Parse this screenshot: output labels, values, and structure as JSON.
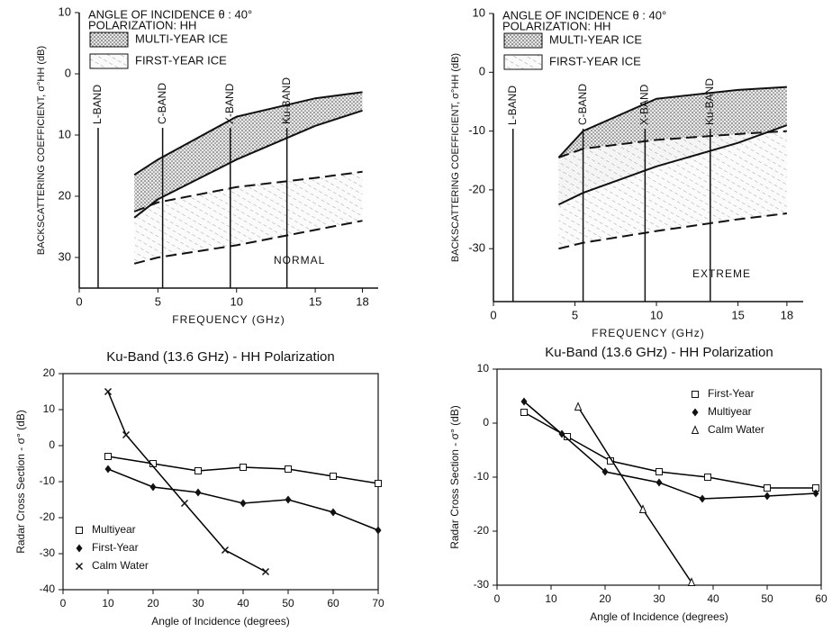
{
  "chart_data": [
    {
      "type": "band",
      "xlim": [
        0,
        19
      ],
      "ylim": [
        -35,
        10
      ],
      "xticks": [
        0,
        5,
        10,
        15,
        18
      ],
      "yticks": [
        10,
        0,
        {
          "value": -10,
          "label": "10"
        },
        {
          "value": -20,
          "label": "20"
        },
        {
          "value": -30,
          "label": "30"
        }
      ],
      "xlabel": "FREQUENCY (GHz)",
      "ylabel": "BACKSCATTERING COEFFICIENT, σ°HH (dB)",
      "annotations": [
        "ANGLE OF INCIDENCE θ : 40°",
        "POLARIZATION: HH"
      ],
      "note": "NORMAL",
      "bands": [
        {
          "label": "L-BAND",
          "x": 1.2
        },
        {
          "label": "C-BAND",
          "x": 5.3
        },
        {
          "label": "X-BAND",
          "x": 9.6
        },
        {
          "label": "Ku-BAND",
          "x": 13.2
        }
      ],
      "series": [
        {
          "name": "MULTI-YEAR ICE",
          "pattern": "dots",
          "dash": "solid",
          "x": [
            3.5,
            5,
            10,
            15,
            18
          ],
          "upper": [
            -16.5,
            -14,
            -7,
            -4,
            -3
          ],
          "lower": [
            -23.5,
            -20.5,
            -14,
            -8.5,
            -6
          ]
        },
        {
          "name": "FIRST-YEAR ICE",
          "pattern": "hatch",
          "dash": "dashed",
          "x": [
            3.5,
            5,
            10,
            15,
            18
          ],
          "upper": [
            -22.5,
            -21,
            -18.5,
            -17,
            -16
          ],
          "lower": [
            -31,
            -30,
            -28,
            -25.5,
            -24
          ]
        }
      ]
    },
    {
      "type": "band",
      "xlim": [
        0,
        19
      ],
      "ylim": [
        -39,
        10
      ],
      "xticks": [
        0,
        5,
        10,
        15,
        18
      ],
      "yticks": [
        10,
        0,
        -10,
        -20,
        -30
      ],
      "xlabel": "FREQUENCY (GHz)",
      "ylabel": "BACKSCATTERING COEFFICIENT, σ°HH (dB)",
      "annotations": [
        "ANGLE OF INCIDENCE θ : 40°",
        "POLARIZATION: HH"
      ],
      "note": "EXTREME",
      "bands": [
        {
          "label": "L-BAND",
          "x": 1.2
        },
        {
          "label": "C-BAND",
          "x": 5.5
        },
        {
          "label": "X-BAND",
          "x": 9.3
        },
        {
          "label": "Ku-BAND",
          "x": 13.3
        }
      ],
      "series": [
        {
          "name": "MULTI-YEAR ICE",
          "pattern": "dots",
          "dash": "solid",
          "x": [
            4,
            5.5,
            10,
            15,
            18
          ],
          "upper": [
            -14.5,
            -10,
            -4.5,
            -3,
            -2.5
          ],
          "lower": [
            -22.5,
            -20.5,
            -16,
            -12,
            -9
          ]
        },
        {
          "name": "FIRST-YEAR ICE",
          "pattern": "hatch",
          "dash": "dashed",
          "x": [
            4,
            5.5,
            10,
            15,
            18
          ],
          "upper": [
            -14.5,
            -13,
            -11.5,
            -10.5,
            -10
          ],
          "lower": [
            -30,
            -29,
            -27,
            -25,
            -24
          ]
        }
      ]
    },
    {
      "type": "scatter",
      "title": "Ku-Band (13.6 GHz) - HH Polarization",
      "xlim": [
        0,
        70
      ],
      "ylim": [
        -40,
        20
      ],
      "xticks": [
        0,
        10,
        20,
        30,
        40,
        50,
        60,
        70
      ],
      "yticks": [
        -40,
        -30,
        -20,
        -10,
        0,
        10,
        20
      ],
      "xlabel": "Angle of Incidence (degrees)",
      "ylabel": "Radar Cross Section - σ° (dB)",
      "legend": "lower left",
      "series": [
        {
          "name": "Multiyear",
          "marker": "square",
          "color": "#000000",
          "x": [
            10,
            20,
            30,
            40,
            50,
            60,
            70
          ],
          "values": [
            -3,
            -5,
            -7,
            -6,
            -6.5,
            -8.5,
            -10.5
          ]
        },
        {
          "name": "First-Year",
          "marker": "diamond",
          "color": "#000000",
          "x": [
            10,
            20,
            30,
            40,
            50,
            60,
            70
          ],
          "values": [
            -6.5,
            -11.5,
            -13,
            -16,
            -15,
            -18.5,
            -23.5
          ]
        },
        {
          "name": "Calm Water",
          "marker": "x",
          "color": "#000000",
          "x": [
            10,
            14,
            27,
            36,
            45
          ],
          "values": [
            15,
            3,
            -16,
            -29,
            -35
          ]
        }
      ]
    },
    {
      "type": "scatter",
      "title": "Ku-Band (13.6 GHz) - HH Polarization",
      "xlim": [
        0,
        60
      ],
      "ylim": [
        -30,
        10
      ],
      "xticks": [
        0,
        10,
        20,
        30,
        40,
        50,
        60
      ],
      "yticks": [
        -30,
        -20,
        -10,
        0,
        10
      ],
      "xlabel": "Angle of Incidence (degrees)",
      "ylabel": "Radar Cross Section - σ° (dB)",
      "legend": "upper right",
      "series": [
        {
          "name": "First-Year",
          "marker": "square",
          "color": "#000000",
          "x": [
            5,
            13,
            21,
            30,
            39,
            50,
            59
          ],
          "values": [
            2,
            -2.5,
            -7,
            -9,
            -10,
            -12,
            -12
          ]
        },
        {
          "name": "Multiyear",
          "marker": "diamond",
          "color": "#000000",
          "x": [
            5,
            12,
            20,
            30,
            38,
            50,
            59
          ],
          "values": [
            4,
            -2,
            -9,
            -11,
            -14,
            -13.5,
            -13
          ]
        },
        {
          "name": "Calm Water",
          "marker": "triangle",
          "color": "#000000",
          "x": [
            15,
            27,
            36
          ],
          "values": [
            3,
            -16,
            -29.5
          ]
        }
      ]
    }
  ]
}
